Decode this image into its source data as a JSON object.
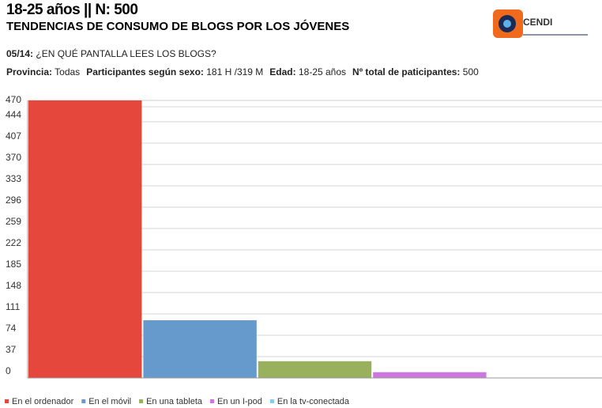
{
  "chart_data": {
    "type": "bar",
    "title": "18-25 años || N: 500",
    "subtitle": "TENDENCIAS DE CONSUMO DE BLOGS POR LOS JÓVENES",
    "logo": "CENDI",
    "question": {
      "number": "05/14:",
      "text": "¿EN QUÉ PANTALLA LEES LOS BLOGS?"
    },
    "filters": [
      {
        "label": "Provincia:",
        "value": "Todas"
      },
      {
        "label": "Participantes según sexo:",
        "value": "181 H /319 M"
      },
      {
        "label": "Edad:",
        "value": "18-25 años"
      },
      {
        "label": "Nº total de paticipantes:",
        "value": "500"
      }
    ],
    "categories": [
      "En el ordenador",
      "En el móvil",
      "En una tableta",
      "En un I-pod",
      "En la tv-conectada"
    ],
    "values": [
      481,
      100,
      29,
      10,
      0
    ],
    "colors": [
      "#e5473d",
      "#6699cc",
      "#99b05d",
      "#cc77dd",
      "#88ccee"
    ],
    "ylim": [
      0,
      481
    ],
    "yticks": [
      0,
      37,
      74,
      111,
      148,
      185,
      222,
      259,
      296,
      333,
      370,
      407,
      444,
      470
    ],
    "grid": true
  }
}
